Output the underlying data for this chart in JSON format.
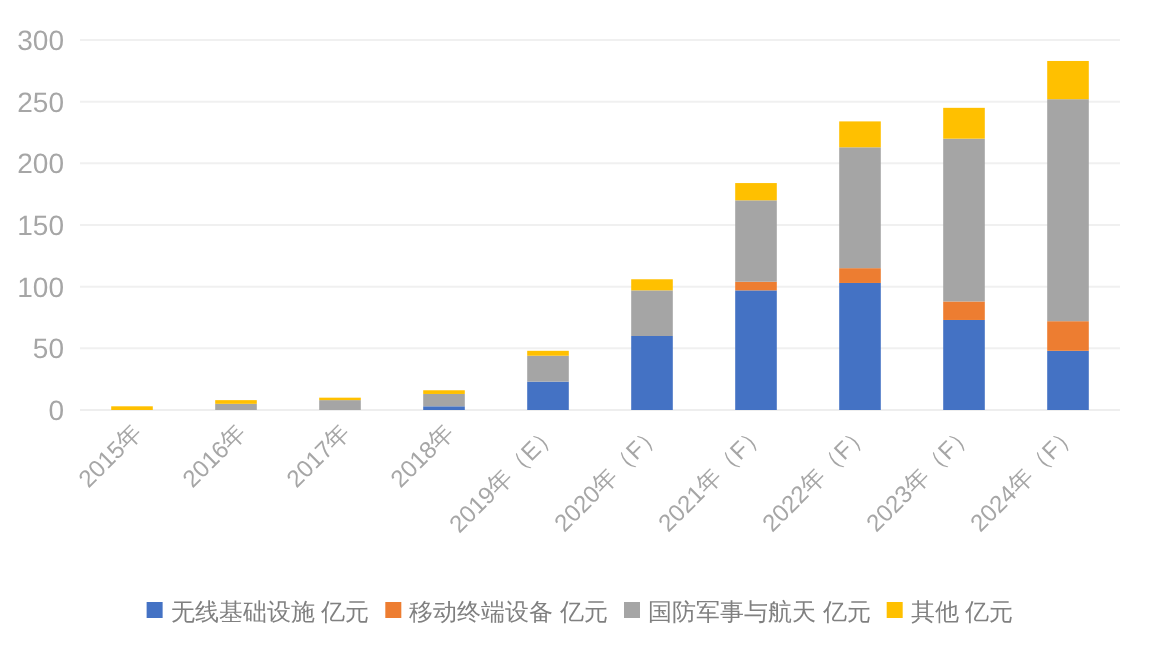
{
  "chart_data": {
    "type": "bar",
    "stacked": true,
    "categories": [
      "2015年",
      "2016年",
      "2017年",
      "2018年",
      "2019年（E）",
      "2020年（F）",
      "2021年（F）",
      "2022年（F）",
      "2023年（F）",
      "2024年（F）"
    ],
    "series": [
      {
        "name": "无线基础设施 亿元",
        "color": "#4472c4",
        "values": [
          0,
          0,
          0,
          3,
          23,
          60,
          97,
          103,
          73,
          48
        ]
      },
      {
        "name": "移动终端设备 亿元",
        "color": "#ed7d31",
        "values": [
          0,
          0,
          0,
          0,
          0,
          0,
          7,
          12,
          15,
          24
        ]
      },
      {
        "name": "国防军事与航天 亿元",
        "color": "#a5a5a5",
        "values": [
          null,
          5,
          8,
          10,
          21,
          37,
          66,
          98,
          132,
          180
        ]
      },
      {
        "name": "其他 亿元",
        "color": "#ffc000",
        "values": [
          3,
          3,
          2,
          3,
          4,
          9,
          14,
          21,
          25,
          31
        ]
      }
    ],
    "ylim": [
      0,
      300
    ],
    "yticks": [
      0,
      50,
      100,
      150,
      200,
      250,
      300
    ],
    "grid": "y",
    "legend": "bottom"
  }
}
